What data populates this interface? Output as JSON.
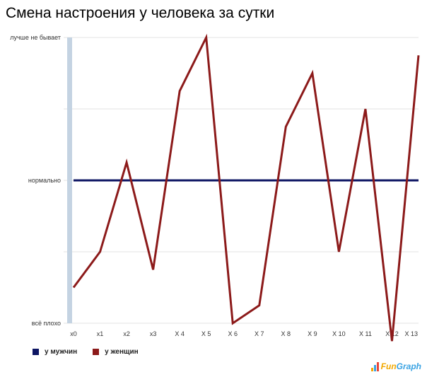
{
  "chart_data": {
    "type": "line",
    "title": "Смена настроения у человека за сутки",
    "categories": [
      "x0",
      "x1",
      "x2",
      "x3",
      "X 4",
      "X 5",
      "X 6",
      "X 7",
      "X 8",
      "X 9",
      "X 10",
      "X 11",
      "X 12",
      "X 13"
    ],
    "y_ticks": [
      {
        "value": 2,
        "label": "лучше не бывает"
      },
      {
        "value": 1,
        "label": ""
      },
      {
        "value": 0,
        "label": "нормально"
      },
      {
        "value": -1,
        "label": ""
      },
      {
        "value": -2,
        "label": "всё плохо"
      }
    ],
    "ylim": [
      -2,
      2
    ],
    "grid": true,
    "legend_position": "bottom-left",
    "series": [
      {
        "name": "у мужчин",
        "color": "#0d1563",
        "values": [
          0,
          0,
          0,
          0,
          0,
          0,
          0,
          0,
          0,
          0,
          0,
          0,
          0,
          0
        ]
      },
      {
        "name": "у женщин",
        "color": "#8c1a1a",
        "values": [
          -1.5,
          -1.0,
          0.25,
          -1.25,
          1.25,
          2.0,
          -2.0,
          -1.75,
          0.75,
          1.5,
          -1.0,
          1.0,
          -2.25,
          1.75
        ]
      }
    ]
  },
  "logo": {
    "text": "FunGraph",
    "colors": [
      "#f2a800",
      "#3aa3e3",
      "#e6463a"
    ]
  }
}
